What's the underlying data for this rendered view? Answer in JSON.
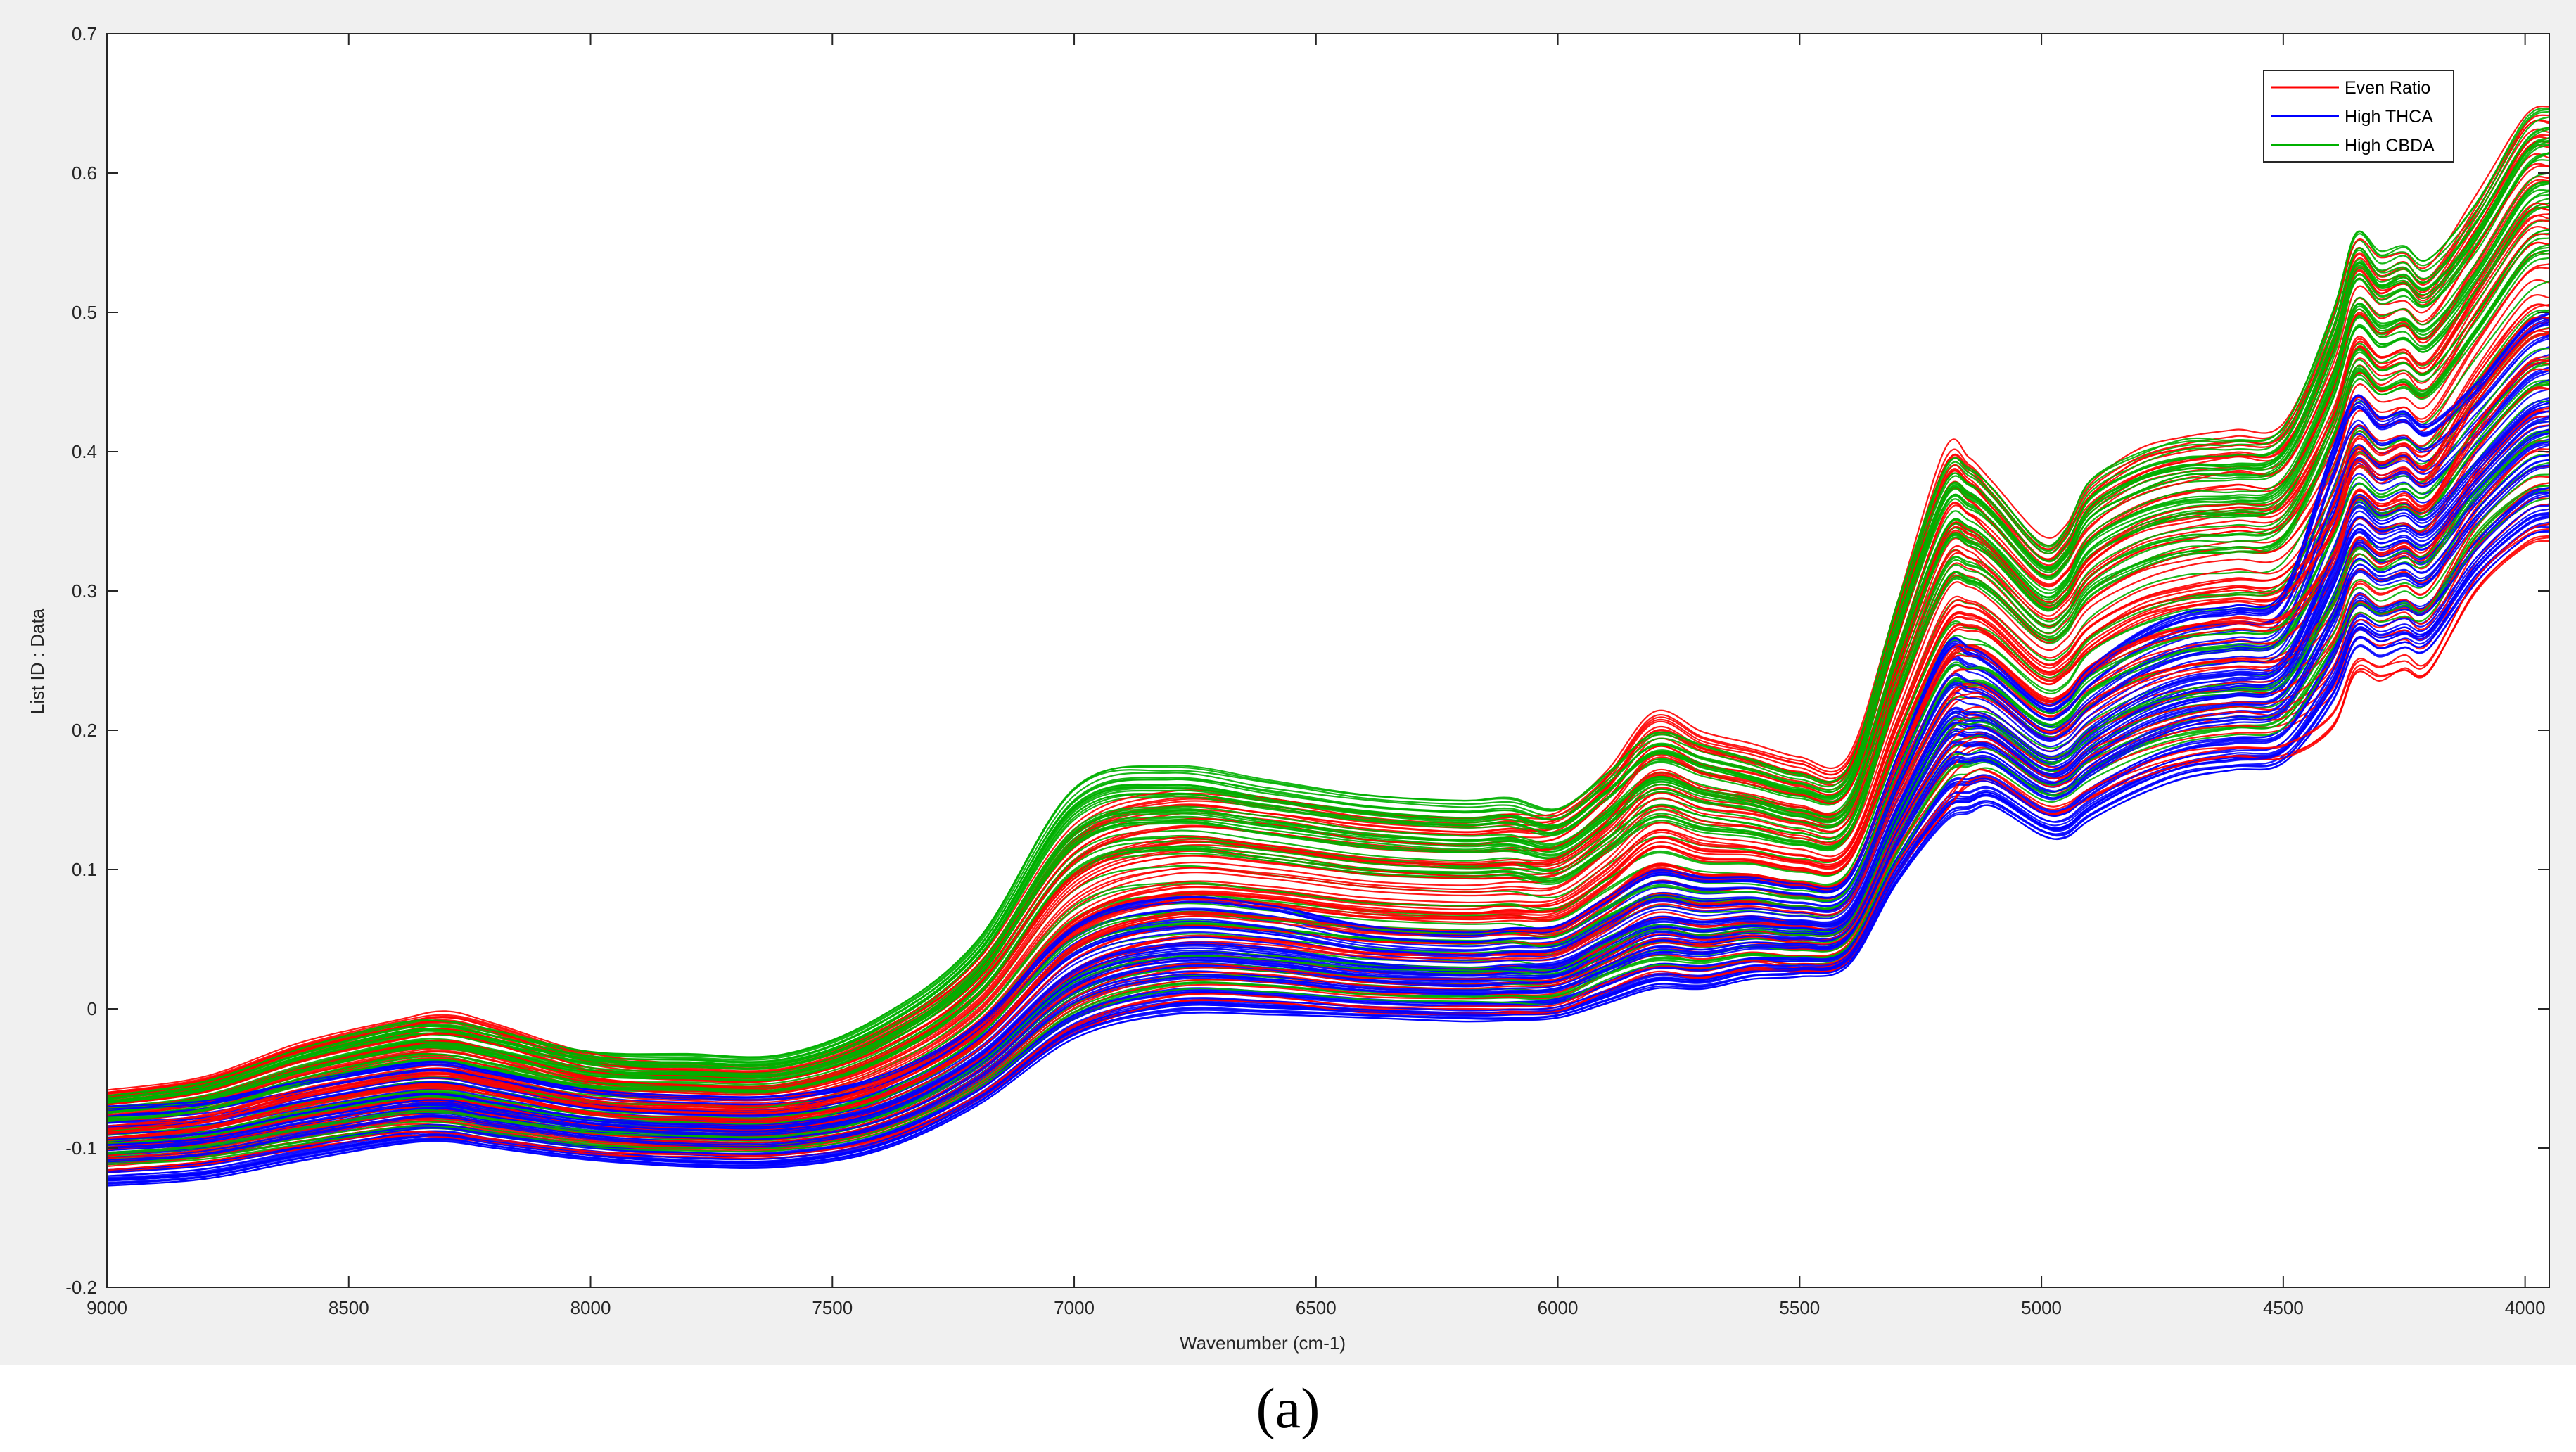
{
  "caption": "(a)",
  "chart_data": {
    "type": "line",
    "xlabel": "Wavenumber (cm-1)",
    "ylabel": "List ID : Data",
    "xlim": [
      9000,
      3950
    ],
    "x_reversed": true,
    "ylim": [
      -0.2,
      0.7
    ],
    "x_ticks": [
      9000,
      8500,
      8000,
      7500,
      7000,
      6500,
      6000,
      5500,
      5000,
      4500,
      4000
    ],
    "y_ticks": [
      -0.2,
      -0.1,
      0,
      0.1,
      0.2,
      0.3,
      0.4,
      0.5,
      0.6,
      0.7
    ],
    "y_tick_labels": [
      "-0.2",
      "-0.1",
      "0",
      "0.1",
      "0.2",
      "0.3",
      "0.4",
      "0.5",
      "0.6",
      "0.7"
    ],
    "legend_position": "top-right",
    "grid": false,
    "x": [
      9000,
      8800,
      8600,
      8400,
      8300,
      8200,
      8000,
      7800,
      7600,
      7400,
      7200,
      7000,
      6800,
      6600,
      6400,
      6200,
      6100,
      6000,
      5900,
      5800,
      5700,
      5600,
      5500,
      5400,
      5300,
      5200,
      5150,
      5100,
      5000,
      4950,
      4900,
      4800,
      4700,
      4600,
      4500,
      4400,
      4350,
      4300,
      4250,
      4200,
      4100,
      4000,
      3950
    ],
    "series": [
      {
        "name": "Even Ratio",
        "color": "#ff0000",
        "min_values": [
          -0.118,
          -0.112,
          -0.101,
          -0.092,
          -0.093,
          -0.097,
          -0.105,
          -0.107,
          -0.107,
          -0.096,
          -0.066,
          -0.018,
          0.004,
          0.004,
          -0.003,
          -0.004,
          -0.004,
          -0.003,
          0.012,
          0.024,
          0.022,
          0.028,
          0.026,
          0.034,
          0.095,
          0.14,
          0.16,
          0.162,
          0.14,
          0.14,
          0.15,
          0.165,
          0.175,
          0.18,
          0.18,
          0.2,
          0.24,
          0.235,
          0.242,
          0.24,
          0.3,
          0.33,
          0.335
        ],
        "max_values": [
          -0.055,
          -0.045,
          -0.02,
          -0.003,
          0.003,
          -0.005,
          -0.028,
          -0.035,
          -0.035,
          -0.01,
          0.04,
          0.14,
          0.165,
          0.16,
          0.15,
          0.145,
          0.148,
          0.15,
          0.18,
          0.225,
          0.21,
          0.2,
          0.19,
          0.19,
          0.3,
          0.415,
          0.41,
          0.39,
          0.35,
          0.36,
          0.39,
          0.415,
          0.425,
          0.43,
          0.435,
          0.51,
          0.57,
          0.555,
          0.56,
          0.55,
          0.6,
          0.66,
          0.665
        ]
      },
      {
        "name": "High THCA",
        "color": "#0000ff",
        "min_values": [
          -0.13,
          -0.125,
          -0.112,
          -0.1,
          -0.098,
          -0.103,
          -0.111,
          -0.116,
          -0.116,
          -0.104,
          -0.072,
          -0.025,
          -0.008,
          -0.008,
          -0.01,
          -0.012,
          -0.012,
          -0.01,
          0.0,
          0.01,
          0.01,
          0.018,
          0.02,
          0.028,
          0.085,
          0.128,
          0.135,
          0.14,
          0.12,
          0.118,
          0.13,
          0.148,
          0.16,
          0.165,
          0.17,
          0.21,
          0.25,
          0.245,
          0.25,
          0.25,
          0.3,
          0.33,
          0.335
        ],
        "max_values": [
          -0.07,
          -0.066,
          -0.052,
          -0.04,
          -0.038,
          -0.045,
          -0.058,
          -0.062,
          -0.062,
          -0.048,
          -0.01,
          0.06,
          0.08,
          0.075,
          0.06,
          0.055,
          0.058,
          0.06,
          0.08,
          0.1,
          0.095,
          0.095,
          0.09,
          0.095,
          0.18,
          0.26,
          0.26,
          0.25,
          0.22,
          0.225,
          0.245,
          0.27,
          0.285,
          0.29,
          0.3,
          0.4,
          0.44,
          0.425,
          0.43,
          0.42,
          0.45,
          0.49,
          0.5
        ]
      },
      {
        "name": "High CBDA",
        "color": "#00b000",
        "min_values": [
          -0.112,
          -0.108,
          -0.098,
          -0.088,
          -0.087,
          -0.092,
          -0.1,
          -0.102,
          -0.102,
          -0.09,
          -0.058,
          -0.008,
          0.012,
          0.012,
          0.006,
          0.004,
          0.004,
          0.004,
          0.02,
          0.03,
          0.028,
          0.034,
          0.032,
          0.04,
          0.105,
          0.16,
          0.168,
          0.17,
          0.15,
          0.15,
          0.162,
          0.18,
          0.19,
          0.195,
          0.2,
          0.25,
          0.28,
          0.275,
          0.28,
          0.28,
          0.33,
          0.36,
          0.365
        ],
        "max_values": [
          -0.062,
          -0.052,
          -0.028,
          -0.01,
          -0.008,
          -0.015,
          -0.03,
          -0.032,
          -0.032,
          -0.005,
          0.05,
          0.16,
          0.175,
          0.165,
          0.155,
          0.15,
          0.152,
          0.145,
          0.17,
          0.2,
          0.19,
          0.18,
          0.17,
          0.175,
          0.29,
          0.39,
          0.39,
          0.375,
          0.335,
          0.345,
          0.38,
          0.4,
          0.41,
          0.41,
          0.42,
          0.5,
          0.56,
          0.545,
          0.55,
          0.54,
          0.58,
          0.64,
          0.65
        ]
      }
    ],
    "curves_per_series": 70
  }
}
